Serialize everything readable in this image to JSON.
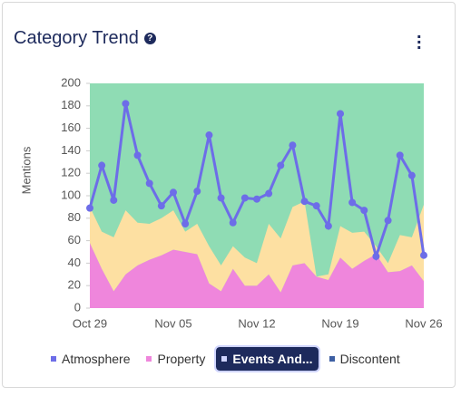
{
  "chart_data": {
    "type": "line",
    "title": "Category Trend",
    "y_label": "Mentions",
    "categories": [
      "Oct 29",
      null,
      null,
      null,
      null,
      null,
      null,
      "Nov 05",
      null,
      null,
      null,
      null,
      null,
      null,
      "Nov 12",
      null,
      null,
      null,
      null,
      null,
      null,
      "Nov 19",
      null,
      null,
      null,
      null,
      null,
      null,
      "Nov 26"
    ],
    "ylim": [
      0,
      200
    ],
    "yticks": [
      0,
      20,
      40,
      60,
      80,
      100,
      120,
      140,
      160,
      180,
      200
    ],
    "plot_background": "#8fdcb4",
    "series": [
      {
        "name": "Atmosphere",
        "color": "#6d6de8",
        "kind": "line",
        "values": [
          89,
          127,
          96,
          182,
          136,
          111,
          91,
          103,
          75,
          104,
          154,
          98,
          76,
          98,
          97,
          102,
          127,
          145,
          95,
          91,
          73,
          173,
          94,
          87,
          46,
          78,
          136,
          118,
          47
        ]
      },
      {
        "name": "Property",
        "color": "#ef86dc",
        "kind": "area",
        "values": [
          58,
          35,
          15,
          30,
          38,
          43,
          47,
          52,
          50,
          48,
          22,
          15,
          35,
          20,
          20,
          30,
          14,
          38,
          40,
          28,
          25,
          45,
          35,
          42,
          48,
          32,
          33,
          38,
          24
        ]
      },
      {
        "name": "Events And...",
        "color": "#fde0a2",
        "kind": "area",
        "values": [
          32,
          33,
          48,
          57,
          38,
          32,
          33,
          35,
          18,
          27,
          33,
          23,
          20,
          25,
          20,
          45,
          48,
          52,
          55,
          0,
          5,
          28,
          32,
          26,
          7,
          8,
          32,
          25,
          68
        ]
      },
      {
        "name": "Discontent",
        "color": "#3d5fa3",
        "kind": "area",
        "values": [
          null,
          null,
          null,
          null,
          null,
          null,
          null,
          null,
          null,
          null,
          null,
          null,
          null,
          null,
          null,
          null,
          null,
          null,
          null,
          null,
          null,
          null,
          null,
          null,
          null,
          null,
          null,
          null,
          null
        ]
      }
    ]
  }
}
